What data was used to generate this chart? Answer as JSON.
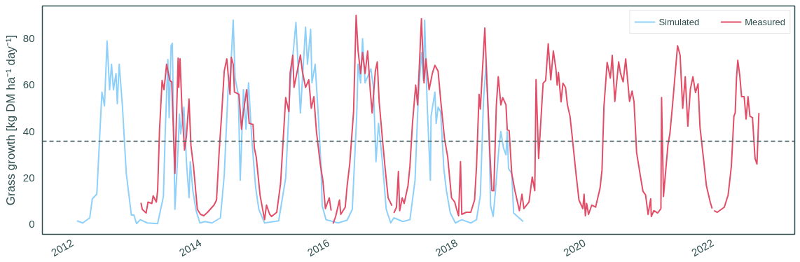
{
  "chart_data": {
    "type": "line",
    "ylabel": "Grass growth [kg DM ha⁻¹ day⁻¹]",
    "xlim": [
      2011.53,
      2023.28
    ],
    "ylim": [
      -4.3,
      94.1
    ],
    "xticks": [
      2012,
      2014,
      2016,
      2018,
      2020,
      2022
    ],
    "yticks": [
      0,
      20,
      40,
      60,
      80
    ],
    "grid": false,
    "legend": "top right",
    "line_style": "solid",
    "marker": "none",
    "ref_lines": [
      {
        "axis": "y",
        "value": 35.8,
        "line_style": "dashed",
        "color": "#4f6565"
      }
    ],
    "series": [
      {
        "name": "Simulated",
        "color": "#87cefa",
        "x": [
          2012.07,
          2012.16,
          2012.27,
          2012.31,
          2012.38,
          2012.46,
          2012.5,
          2012.54,
          2012.58,
          2012.61,
          2012.64,
          2012.68,
          2012.7,
          2012.73,
          2012.78,
          2012.84,
          2012.92,
          2012.96,
          2013.0,
          2013.06,
          2013.17,
          2013.33,
          2013.42,
          2013.45,
          2013.49,
          2013.51,
          2013.54,
          2013.56,
          2013.6,
          2013.65,
          2013.67,
          2013.69,
          2013.74,
          2013.78,
          2013.82,
          2013.84,
          2013.88,
          2013.93,
          2013.99,
          2014.07,
          2014.18,
          2014.31,
          2014.37,
          2014.43,
          2014.47,
          2014.51,
          2014.54,
          2014.59,
          2014.62,
          2014.67,
          2014.71,
          2014.75,
          2014.8,
          2014.86,
          2014.91,
          2015.0,
          2015.22,
          2015.33,
          2015.4,
          2015.49,
          2015.56,
          2015.64,
          2015.67,
          2015.72,
          2015.74,
          2015.79,
          2015.84,
          2015.88,
          2015.9,
          2015.96,
          2016.15,
          2016.29,
          2016.37,
          2016.44,
          2016.46,
          2016.5,
          2016.53,
          2016.57,
          2016.66,
          2016.7,
          2016.74,
          2016.78,
          2016.84,
          2016.9,
          2016.97,
          2017.02,
          2017.16,
          2017.27,
          2017.35,
          2017.4,
          2017.45,
          2017.48,
          2017.5,
          2017.54,
          2017.59,
          2017.6,
          2017.66,
          2017.68,
          2017.71,
          2017.75,
          2017.8,
          2017.84,
          2017.9,
          2017.98,
          2018.08,
          2018.22,
          2018.31,
          2018.37,
          2018.42,
          2018.46,
          2018.5,
          2018.53,
          2018.57,
          2018.6,
          2018.66,
          2018.69,
          2018.73,
          2018.77,
          2018.79,
          2018.81,
          2018.86,
          2018.89,
          2018.95,
          2019.04
        ],
        "values": [
          1.5,
          0.6,
          2.8,
          11,
          13,
          57,
          51,
          79,
          58,
          69,
          58,
          65,
          52,
          69,
          51,
          22,
          4,
          4,
          0.3,
          2,
          0.6,
          0.3,
          12,
          41,
          71,
          46,
          77,
          78,
          6.5,
          33,
          47.5,
          39,
          50.5,
          27,
          11.5,
          27,
          14.5,
          6,
          0.6,
          1.2,
          0.6,
          2.8,
          21,
          58,
          66,
          88,
          63,
          56,
          19,
          58,
          41,
          61,
          37,
          16,
          6.5,
          0.6,
          1.5,
          20,
          60,
          87,
          48,
          85,
          69,
          84,
          61,
          69,
          46.5,
          26,
          8,
          2,
          0.6,
          1.8,
          6.5,
          47.5,
          69,
          61,
          80,
          61,
          67,
          59,
          27,
          43.5,
          27,
          6.5,
          0.6,
          2.8,
          1.2,
          2,
          19,
          54,
          74,
          62,
          88,
          51.5,
          19,
          46.5,
          57,
          43.5,
          50.5,
          48.5,
          24,
          14.5,
          5,
          0.6,
          2,
          0.6,
          2,
          12.5,
          54,
          69,
          45,
          8,
          3.4,
          12.5,
          33,
          40,
          33,
          30,
          40,
          24,
          22,
          4.9,
          3.4,
          1.2
        ]
      },
      {
        "name": "Measured",
        "color": "#e0435f",
        "x": [
          2013.07,
          2013.09,
          2013.15,
          2013.18,
          2013.24,
          2013.26,
          2013.31,
          2013.33,
          2013.36,
          2013.4,
          2013.43,
          2013.47,
          2013.52,
          2013.55,
          2013.6,
          2013.65,
          2013.66,
          2013.68,
          2013.71,
          2013.75,
          2013.78,
          2013.82,
          2013.85,
          2013.89,
          2013.91,
          2013.95,
          2014.0,
          2014.05,
          2014.11,
          2014.21,
          2014.25,
          2014.29,
          2014.33,
          2014.37,
          2014.41,
          2014.46,
          2014.48,
          2014.51,
          2014.53,
          2014.6,
          2014.64,
          2014.67,
          2014.72,
          2014.76,
          2014.82,
          2014.84,
          2014.87,
          2014.93,
          2015.0,
          2015.03,
          2015.08,
          2015.11,
          2015.19,
          2015.25,
          2015.33,
          2015.38,
          2015.4,
          2015.44,
          2015.46,
          2015.51,
          2015.56,
          2015.59,
          2015.64,
          2015.69,
          2015.73,
          2015.77,
          2015.81,
          2015.87,
          2015.91,
          2015.95,
          2016.01,
          2016.04,
          2016.055,
          2016.07,
          2016.11,
          2016.17,
          2016.19,
          2016.26,
          2016.29,
          2016.33,
          2016.39,
          2016.43,
          2016.46,
          2016.5,
          2016.53,
          2016.57,
          2016.61,
          2016.65,
          2016.68,
          2016.73,
          2016.76,
          2016.79,
          2016.84,
          2016.88,
          2016.93,
          2016.99,
          2017.005,
          2017.02,
          2017.06,
          2017.09,
          2017.11,
          2017.15,
          2017.18,
          2017.24,
          2017.27,
          2017.31,
          2017.36,
          2017.39,
          2017.45,
          2017.49,
          2017.52,
          2017.57,
          2017.62,
          2017.66,
          2017.71,
          2017.75,
          2017.81,
          2017.86,
          2017.92,
          2017.97,
          2018.0,
          2018.03,
          2018.06,
          2018.08,
          2018.15,
          2018.22,
          2018.28,
          2018.31,
          2018.35,
          2018.37,
          2018.4,
          2018.44,
          2018.47,
          2018.52,
          2018.55,
          2018.58,
          2018.62,
          2018.65,
          2018.69,
          2018.72,
          2018.77,
          2018.79,
          2018.82,
          2018.86,
          2018.91,
          2018.98,
          2019.02,
          2019.05,
          2019.13,
          2019.18,
          2019.22,
          2019.24,
          2019.28,
          2019.35,
          2019.39,
          2019.43,
          2019.47,
          2019.51,
          2019.55,
          2019.57,
          2019.59,
          2019.63,
          2019.66,
          2019.7,
          2019.73,
          2019.77,
          2019.8,
          2019.86,
          2019.91,
          2019.97,
          2019.99,
          2020.01,
          2020.03,
          2020.06,
          2020.11,
          2020.17,
          2020.24,
          2020.27,
          2020.3,
          2020.35,
          2020.4,
          2020.43,
          2020.47,
          2020.53,
          2020.56,
          2020.6,
          2020.64,
          2020.7,
          2020.74,
          2020.77,
          2020.81,
          2020.87,
          2020.91,
          2020.95,
          2020.99,
          2021.03,
          2021.04,
          2021.08,
          2021.14,
          2021.19,
          2021.2,
          2021.23,
          2021.3,
          2021.33,
          2021.37,
          2021.41,
          2021.45,
          2021.49,
          2021.53,
          2021.57,
          2021.61,
          2021.65,
          2021.69,
          2021.73,
          2021.77,
          2021.8,
          2021.86,
          2021.9,
          2021.96,
          2021.99,
          2022.005,
          2022.02,
          2022.07,
          2022.18,
          2022.24,
          2022.29,
          2022.33,
          2022.35,
          2022.37,
          2022.39,
          2022.42,
          2022.45,
          2022.49,
          2022.52,
          2022.55,
          2022.58,
          2022.62,
          2022.66,
          2022.69,
          2022.72
        ],
        "values": [
          9.3,
          6.5,
          4.9,
          9.6,
          9,
          12.3,
          9.6,
          14.5,
          41,
          62,
          58,
          69,
          62,
          61.4,
          22,
          71.6,
          59,
          71.3,
          49.7,
          32,
          38,
          54,
          34,
          25,
          19,
          6.5,
          4.3,
          3.7,
          5.2,
          8.3,
          10.5,
          31,
          47.5,
          66,
          71.3,
          56,
          72,
          69,
          57,
          56,
          41,
          48.5,
          58,
          43.5,
          43,
          33,
          29,
          12.5,
          2,
          8.3,
          4.3,
          3.4,
          5.2,
          17.6,
          54.6,
          48.5,
          65.4,
          72.8,
          59,
          66,
          73,
          66,
          59,
          62.3,
          50,
          55,
          40,
          26,
          19,
          6.8,
          11.4,
          5.9,
          null,
          0.3,
          3.4,
          10.5,
          4.3,
          7.4,
          16.7,
          26,
          48.5,
          90,
          75,
          65,
          74,
          65,
          74.7,
          58,
          48,
          66,
          70,
          52.8,
          37,
          25,
          11.4,
          8,
          null,
          4.9,
          7.4,
          22.8,
          5.9,
          11.4,
          9,
          16.7,
          25,
          43.5,
          60,
          51.5,
          88.6,
          61,
          71.3,
          58,
          65,
          68.5,
          66,
          53.7,
          37,
          29,
          11.4,
          9.6,
          6.5,
          3.7,
          27,
          4.3,
          5.2,
          5.2,
          10.5,
          25,
          56,
          49.7,
          65,
          84.6,
          63,
          30,
          14.5,
          14.5,
          51.5,
          63.6,
          51.5,
          54.6,
          51.5,
          40.7,
          40.4,
          22,
          14.5,
          5.9,
          13,
          6.8,
          9.6,
          20.4,
          14.5,
          62.3,
          28.4,
          60.8,
          62,
          77.8,
          62.3,
          74.7,
          67,
          60,
          65.4,
          52.8,
          60.8,
          59,
          51.5,
          46.6,
          39,
          22.8,
          10.5,
          6.8,
          13,
          3.7,
          9,
          4.3,
          8.3,
          7.4,
          15.7,
          23.5,
          50.6,
          69.8,
          63,
          72.8,
          53,
          70,
          65,
          61.4,
          71.3,
          53,
          57.4,
          52.8,
          31,
          20.7,
          14.2,
          12.7,
          4.3,
          11,
          3.4,
          5.9,
          4.9,
          6.8,
          54.6,
          12,
          34.3,
          39,
          51,
          64,
          77,
          72.8,
          50,
          63.6,
          42.3,
          58.3,
          63.6,
          56.8,
          60.5,
          42,
          27,
          16.7,
          9.6,
          6.8,
          null,
          5.9,
          5.2,
          7.4,
          12.7,
          25,
          46.6,
          48,
          63,
          70.7,
          64.5,
          55,
          55,
          45.4,
          55,
          46.6,
          46,
          28.4,
          26,
          48
        ]
      }
    ]
  }
}
